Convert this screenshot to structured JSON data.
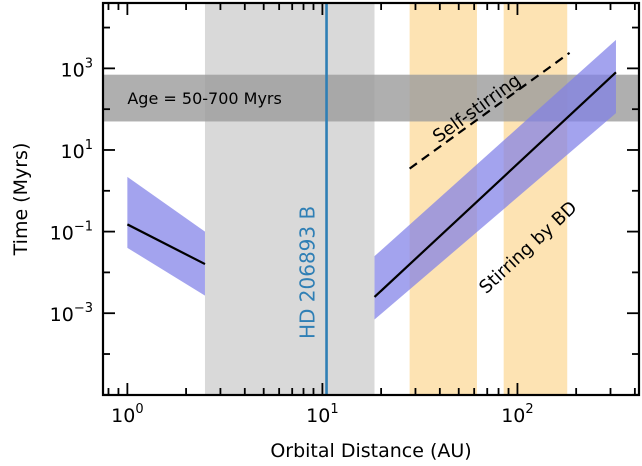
{
  "chart_data": {
    "type": "line",
    "xlabel": "Orbital Distance (AU)",
    "ylabel": "Time (Myrs)",
    "xscale": "log",
    "yscale": "log",
    "xlim": [
      0.75,
      420
    ],
    "ylim": [
      9.9e-06,
      40000
    ],
    "x_ticks": [
      {
        "value": 1,
        "mantissa": "10",
        "exponent": "0"
      },
      {
        "value": 10,
        "mantissa": "10",
        "exponent": "1"
      },
      {
        "value": 100,
        "mantissa": "10",
        "exponent": "2"
      }
    ],
    "y_ticks": [
      {
        "value": 0.001,
        "mantissa": "10",
        "exponent": "−3"
      },
      {
        "value": 0.1,
        "mantissa": "10",
        "exponent": "−1"
      },
      {
        "value": 10,
        "mantissa": "10",
        "exponent": "1"
      },
      {
        "value": 1000,
        "mantissa": "10",
        "exponent": "3"
      }
    ],
    "grid": false,
    "age_band": {
      "label": "Age = 50-700 Myrs",
      "y_range": [
        50,
        700
      ],
      "color": "#9e9e9e"
    },
    "excluded_region": {
      "x_range": [
        2.5,
        18.5
      ],
      "color": "#d9d9d9"
    },
    "orange_bands": [
      {
        "x_range": [
          28,
          62
        ],
        "color": "#fde3b3"
      },
      {
        "x_range": [
          85,
          180
        ],
        "color": "#fde3b3"
      }
    ],
    "companion": {
      "label": "HD 206893 B",
      "x": 10.5,
      "color": "#2f7fb5"
    },
    "series": [
      {
        "name": "Stirring by BD",
        "line_color": "#000000",
        "band_color": "#8080e8",
        "segments": [
          {
            "x": [
              1,
              2.5
            ],
            "y": [
              0.15,
              0.016
            ],
            "y_upper": [
              2.2,
              0.1
            ],
            "y_lower": [
              0.04,
              0.0027
            ]
          },
          {
            "x": [
              18.5,
              320
            ],
            "y": [
              0.0025,
              800
            ],
            "y_upper": [
              0.025,
              5000
            ],
            "y_lower": [
              0.0007,
              80
            ]
          }
        ]
      },
      {
        "name": "Self-stirring",
        "line_color": "#000000",
        "dashed": true,
        "segments": [
          {
            "x": [
              28,
              185
            ],
            "y": [
              3.5,
              2400
            ]
          }
        ]
      }
    ]
  }
}
